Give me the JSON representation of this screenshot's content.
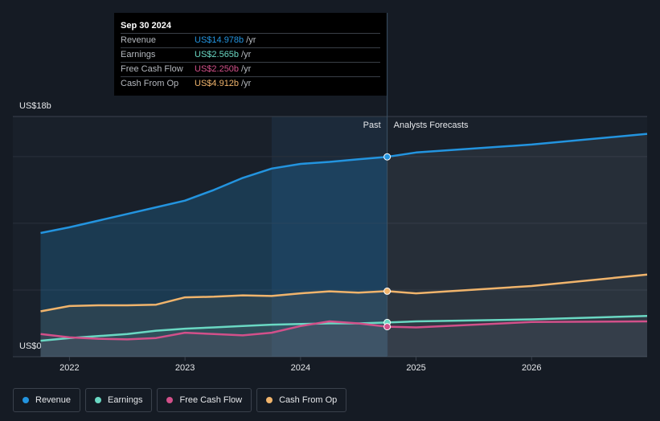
{
  "chart_data": {
    "type": "line",
    "x": [
      2021.75,
      2022,
      2022.25,
      2022.5,
      2022.75,
      2023,
      2023.25,
      2023.5,
      2023.75,
      2024,
      2024.25,
      2024.5,
      2024.75,
      2025,
      2026,
      2027
    ],
    "series": [
      {
        "name": "Revenue",
        "color": "#2394df",
        "values": [
          9.27,
          9.7,
          10.2,
          10.7,
          11.2,
          11.7,
          12.5,
          13.4,
          14.1,
          14.45,
          14.6,
          14.8,
          14.978,
          15.3,
          15.9,
          16.7
        ]
      },
      {
        "name": "Earnings",
        "color": "#6ad8c3",
        "values": [
          1.2,
          1.4,
          1.55,
          1.7,
          1.95,
          2.1,
          2.2,
          2.3,
          2.4,
          2.45,
          2.5,
          2.5,
          2.565,
          2.65,
          2.8,
          3.05
        ]
      },
      {
        "name": "Free Cash Flow",
        "color": "#d2508a",
        "values": [
          1.7,
          1.45,
          1.35,
          1.3,
          1.4,
          1.8,
          1.7,
          1.6,
          1.8,
          2.3,
          2.65,
          2.5,
          2.25,
          2.2,
          2.6,
          2.65
        ]
      },
      {
        "name": "Cash From Op",
        "color": "#f0b46c",
        "values": [
          3.4,
          3.8,
          3.85,
          3.85,
          3.9,
          4.45,
          4.5,
          4.6,
          4.55,
          4.75,
          4.9,
          4.8,
          4.912,
          4.75,
          5.3,
          6.15
        ]
      }
    ],
    "xlim": [
      2021.51,
      2027.0
    ],
    "xticks": [
      2022,
      2023,
      2024,
      2025,
      2026
    ],
    "ylim": [
      0,
      18
    ],
    "yticks": [
      {
        "value": 0,
        "label": "US$0"
      },
      {
        "value": 18,
        "label": "US$18b"
      }
    ],
    "ygrid": [
      5,
      10,
      15
    ],
    "forecast_start": 2024.75,
    "highlight_start": 2023.75,
    "past_label": "Past",
    "forecast_label": "Analysts Forecasts",
    "tooltip": {
      "date": "Sep 30 2024",
      "rows": [
        {
          "label": "Revenue",
          "value": "US$14.978b",
          "unit": "/yr"
        },
        {
          "label": "Earnings",
          "value": "US$2.565b",
          "unit": "/yr"
        },
        {
          "label": "Free Cash Flow",
          "value": "US$2.250b",
          "unit": "/yr"
        },
        {
          "label": "Cash From Op",
          "value": "US$4.912b",
          "unit": "/yr"
        }
      ]
    }
  }
}
